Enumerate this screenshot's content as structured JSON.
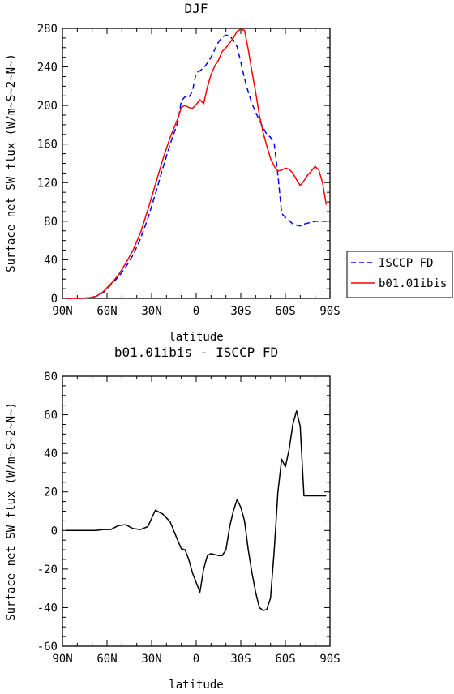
{
  "chart_data": [
    {
      "type": "line",
      "title": "DJF",
      "xlabel": "latitude",
      "ylabel": "Surface net SW flux (W/m~S~2~N~)",
      "x_ticks": [
        "90N",
        "60N",
        "30N",
        "0",
        "30S",
        "60S",
        "90S"
      ],
      "x_tick_values": [
        -90,
        -60,
        -30,
        0,
        30,
        60,
        90
      ],
      "xlim": [
        -90,
        90
      ],
      "ylim": [
        0,
        280
      ],
      "y_ticks": [
        0,
        40,
        80,
        120,
        160,
        200,
        240,
        280
      ],
      "legend_position": "right",
      "series": [
        {
          "name": "ISCCP FD",
          "color": "#0000ff",
          "dash": "dashed",
          "x": [
            -87.5,
            -82.5,
            -77.5,
            -72.5,
            -67.5,
            -62.5,
            -57.5,
            -52.5,
            -47.5,
            -42.5,
            -37.5,
            -32.5,
            -27.5,
            -22.5,
            -17.5,
            -12.5,
            -10,
            -7.5,
            -5,
            -2.5,
            0,
            2.5,
            5,
            7.5,
            10,
            12.5,
            15,
            17.5,
            20,
            22.5,
            25,
            27.5,
            30,
            32.5,
            35,
            37.5,
            40,
            42.5,
            45,
            47.5,
            50,
            52.5,
            55,
            57.5,
            60,
            62.5,
            65,
            67.5,
            70,
            72.5,
            75,
            77.5,
            80,
            82.5,
            85,
            87.5
          ],
          "values": [
            0,
            0,
            0,
            0.5,
            2,
            6,
            14,
            22,
            32,
            45,
            62,
            83,
            108,
            135,
            160,
            182,
            205,
            209,
            208,
            215,
            234,
            236,
            239,
            244,
            250,
            258,
            266,
            271,
            273,
            272,
            268,
            261,
            245,
            228,
            214,
            202,
            193,
            185,
            177,
            170,
            167,
            160,
            128,
            88,
            84,
            81,
            77,
            76,
            75,
            77,
            78,
            79,
            80,
            80,
            80,
            80
          ]
        },
        {
          "name": "b01.01ibis",
          "color": "#ff0000",
          "dash": "solid",
          "x": [
            -87.5,
            -82.5,
            -77.5,
            -72.5,
            -67.5,
            -62.5,
            -57.5,
            -52.5,
            -47.5,
            -42.5,
            -37.5,
            -32.5,
            -27.5,
            -22.5,
            -17.5,
            -12.5,
            -10,
            -7.5,
            -5,
            -2.5,
            0,
            2.5,
            5,
            7.5,
            10,
            12.5,
            15,
            17.5,
            20,
            22.5,
            25,
            27.5,
            30,
            32.5,
            35,
            37.5,
            40,
            42.5,
            45,
            47.5,
            50,
            52.5,
            55,
            57.5,
            60,
            62.5,
            65,
            67.5,
            70,
            72.5,
            75,
            77.5,
            80,
            82.5,
            85,
            87.5
          ],
          "values": [
            0,
            0,
            0,
            0.5,
            2,
            7,
            15,
            24,
            36,
            50,
            68,
            92,
            118,
            144,
            167,
            186,
            198,
            200,
            198,
            197,
            201,
            206,
            202,
            219,
            232,
            241,
            247,
            256,
            260,
            265,
            270,
            277,
            279,
            278,
            258,
            235,
            214,
            190,
            172,
            158,
            145,
            137,
            132,
            133,
            135,
            134,
            130,
            123,
            117,
            122,
            128,
            132,
            137,
            133,
            120,
            97
          ]
        }
      ]
    },
    {
      "type": "line",
      "title": "b01.01ibis - ISCCP FD",
      "xlabel": "latitude",
      "ylabel": "Surface net SW flux (W/m~S~2~N~)",
      "x_ticks": [
        "90N",
        "60N",
        "30N",
        "0",
        "30S",
        "60S",
        "90S"
      ],
      "x_tick_values": [
        -90,
        -60,
        -30,
        0,
        30,
        60,
        90
      ],
      "xlim": [
        -90,
        90
      ],
      "ylim": [
        -60,
        80
      ],
      "y_ticks": [
        -60,
        -40,
        -20,
        0,
        20,
        40,
        60,
        80
      ],
      "series": [
        {
          "name": "",
          "color": "#000000",
          "dash": "solid",
          "x": [
            -87.5,
            -82.5,
            -77.5,
            -72.5,
            -67.5,
            -62.5,
            -57.5,
            -52.5,
            -47.5,
            -42.5,
            -37.5,
            -32.5,
            -27.5,
            -22.5,
            -17.5,
            -12.5,
            -10,
            -7.5,
            -5,
            -2.5,
            0,
            2.5,
            5,
            7.5,
            10,
            12.5,
            15,
            17.5,
            20,
            22.5,
            25,
            27.5,
            30,
            32.5,
            35,
            37.5,
            40,
            42.5,
            45,
            47.5,
            50,
            52.5,
            55,
            57.5,
            60,
            62.5,
            65,
            67.5,
            70,
            72.5,
            75,
            77.5,
            80,
            82.5,
            85,
            87.5
          ],
          "values": [
            0,
            0,
            0,
            0,
            0,
            0.5,
            0.5,
            2.5,
            3,
            1,
            0.5,
            2,
            10.5,
            8.5,
            4.5,
            -5,
            -9.5,
            -10,
            -15,
            -22,
            -27,
            -32,
            -20,
            -13,
            -12,
            -12.5,
            -13,
            -13,
            -10,
            2,
            10,
            16,
            12,
            5,
            -10,
            -22,
            -32,
            -40,
            -41.5,
            -41,
            -35,
            -10,
            20,
            37,
            33,
            42,
            55,
            62,
            54,
            18,
            18,
            18,
            18,
            18,
            18,
            18
          ]
        }
      ]
    }
  ]
}
